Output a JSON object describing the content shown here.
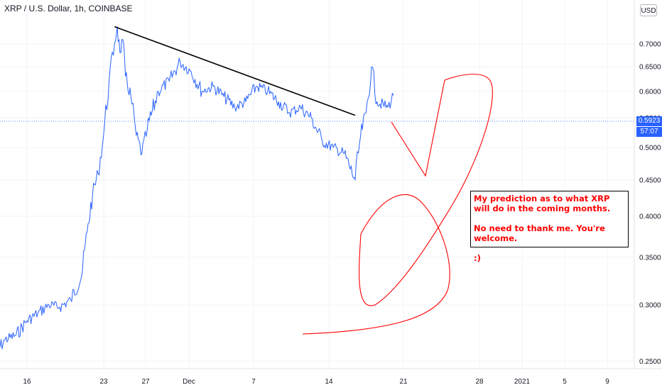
{
  "header": {
    "symbol_title": "XRP / U.S. Dollar, 1h, COINBASE",
    "currency_button": "USD"
  },
  "price_axis": {
    "ticks": [
      "0.7000",
      "0.6500",
      "0.6000",
      "0.5500",
      "0.5000",
      "0.4500",
      "0.4000",
      "0.3500",
      "0.3000",
      "0.2500"
    ],
    "last_price_label": "0.5923",
    "countdown_label": "57:07"
  },
  "time_axis": {
    "ticks": [
      "16",
      "23",
      "27",
      "Dec",
      "7",
      "14",
      "21",
      "28",
      "2021",
      "5",
      "9"
    ]
  },
  "annotation": {
    "line1": "My prediction as to what XRP will do in the coming months.",
    "line2": "No need to thank me. You're welcome.",
    "line3": ":)"
  },
  "colors": {
    "price_line": "#2962ff",
    "trendline": "#000000",
    "drawing": "#ff0000",
    "last_price_tag": "#2962ff"
  },
  "chart_data": {
    "type": "line",
    "title": "XRP / U.S. Dollar, 1h, COINBASE",
    "y_scale": "log",
    "ylim": [
      0.24,
      0.76
    ],
    "grid": true,
    "series": [
      {
        "name": "XRP / U.S. Dollar",
        "x": [
          "Nov 13",
          "Nov 14",
          "Nov 15",
          "Nov 16",
          "Nov 17",
          "Nov 18",
          "Nov 19",
          "Nov 20",
          "Nov 21",
          "Nov 21 12:00",
          "Nov 22",
          "Nov 22 12:00",
          "Nov 23",
          "Nov 23 12:00",
          "Nov 24",
          "Nov 24 06:00",
          "Nov 24 12:00",
          "Nov 24 18:00",
          "Nov 25",
          "Nov 25 12:00",
          "Nov 26",
          "Nov 26 12:00",
          "Nov 27",
          "Nov 28",
          "Nov 29",
          "Nov 30",
          "Dec 1",
          "Dec 2",
          "Dec 3",
          "Dec 4",
          "Dec 5",
          "Dec 6",
          "Dec 7",
          "Dec 8",
          "Dec 9",
          "Dec 10",
          "Dec 11",
          "Dec 12",
          "Dec 13",
          "Dec 14",
          "Dec 15",
          "Dec 16",
          "Dec 16 12:00",
          "Dec 17",
          "Dec 17 12:00",
          "Dec 18",
          "Dec 19",
          "Dec 19 12:00"
        ],
        "y": [
          0.255,
          0.268,
          0.272,
          0.285,
          0.292,
          0.3,
          0.298,
          0.305,
          0.33,
          0.38,
          0.43,
          0.46,
          0.52,
          0.62,
          0.7,
          0.74,
          0.68,
          0.71,
          0.63,
          0.59,
          0.52,
          0.49,
          0.53,
          0.6,
          0.62,
          0.66,
          0.64,
          0.6,
          0.61,
          0.59,
          0.57,
          0.58,
          0.61,
          0.6,
          0.58,
          0.56,
          0.57,
          0.55,
          0.51,
          0.5,
          0.49,
          0.45,
          0.52,
          0.56,
          0.65,
          0.58,
          0.57,
          0.592
        ]
      }
    ],
    "annotations": {
      "trendline": {
        "x1": "Nov 24",
        "y1": 0.74,
        "x2": "Dec 16",
        "y2": 0.555
      },
      "last_price": 0.5923
    }
  }
}
